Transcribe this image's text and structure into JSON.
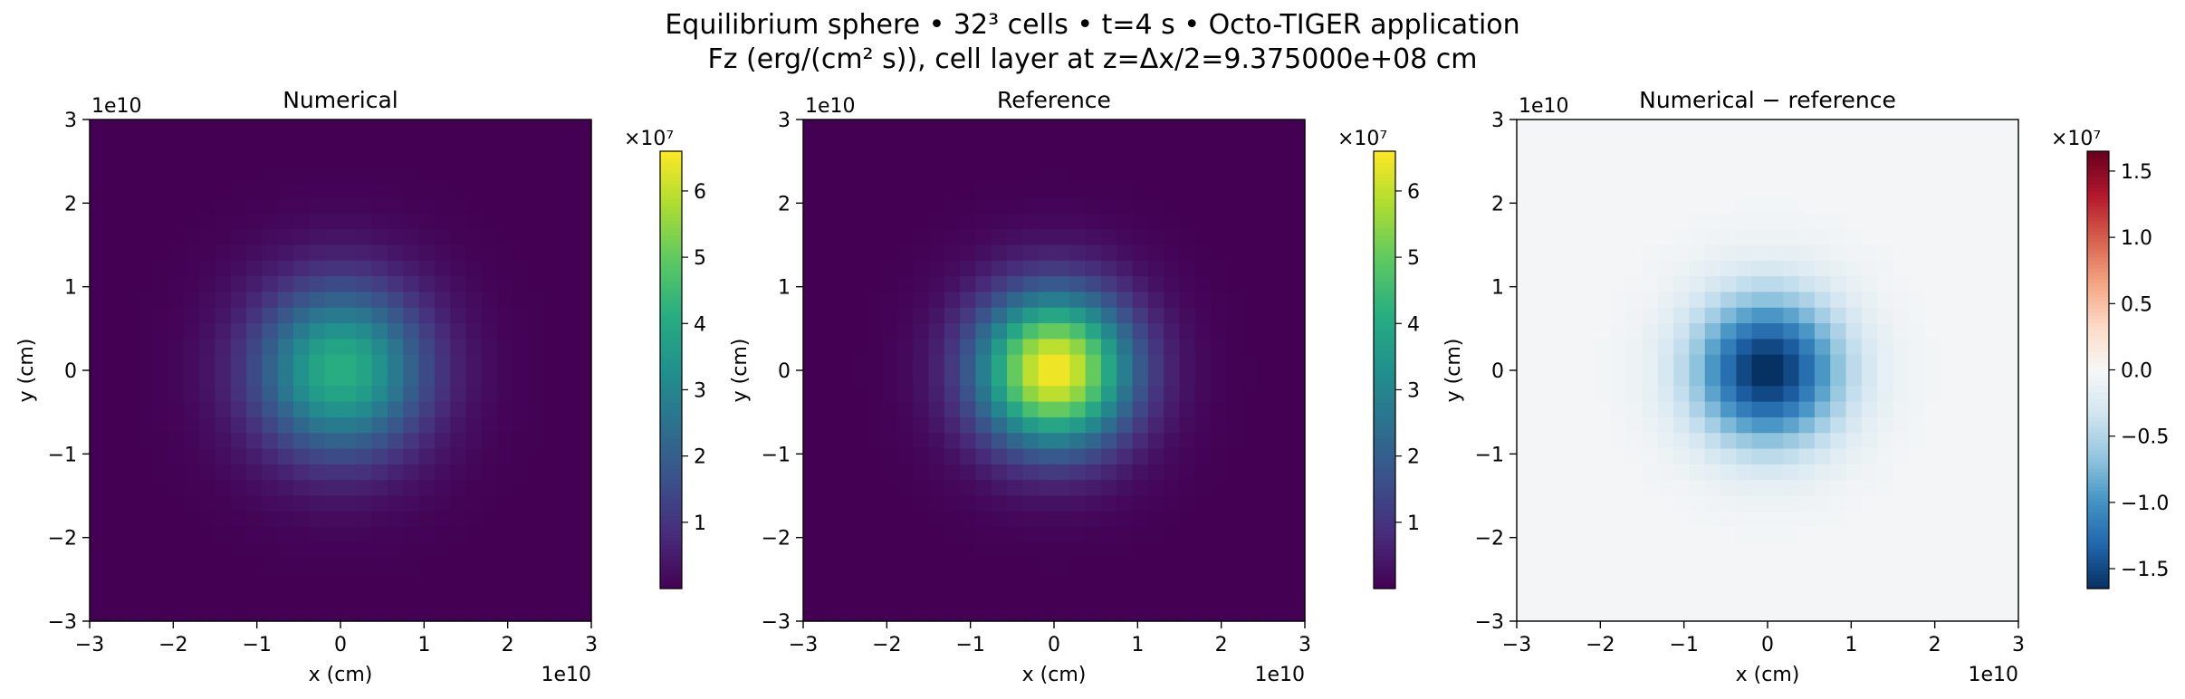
{
  "suptitle": {
    "line1": "Equilibrium sphere • 32³ cells • t=4 s • Octo-TIGER application",
    "line2": "Fz (erg/(cm² s)), cell layer at z=Δx/2=9.375000e+08 cm"
  },
  "chart_data": [
    {
      "type": "heatmap",
      "title": "Numerical",
      "xlabel": "x (cm)",
      "ylabel": "y (cm)",
      "xlim": [
        -3,
        3
      ],
      "ylim": [
        -3,
        3
      ],
      "axis_multiplier": "1e10",
      "xticks": [
        "−3",
        "−2",
        "−1",
        "0",
        "1",
        "2",
        "3"
      ],
      "yticks": [
        "−3",
        "−2",
        "−1",
        "0",
        "1",
        "2",
        "3"
      ],
      "grid_cells": 32,
      "colormap": "viridis",
      "peak_value": 4.2,
      "gaussian_width": 0.72,
      "colorbar": {
        "range": [
          0,
          6.6
        ],
        "multiplier": "×10⁷",
        "ticks": [
          1,
          2,
          3,
          4,
          5,
          6
        ],
        "tick_labels": [
          "1",
          "2",
          "3",
          "4",
          "5",
          "6"
        ]
      }
    },
    {
      "type": "heatmap",
      "title": "Reference",
      "xlabel": "x (cm)",
      "ylabel": "y (cm)",
      "xlim": [
        -3,
        3
      ],
      "ylim": [
        -3,
        3
      ],
      "axis_multiplier": "1e10",
      "xticks": [
        "−3",
        "−2",
        "−1",
        "0",
        "1",
        "2",
        "3"
      ],
      "yticks": [
        "−3",
        "−2",
        "−1",
        "0",
        "1",
        "2",
        "3"
      ],
      "grid_cells": 32,
      "colormap": "viridis",
      "peak_value": 6.6,
      "gaussian_width": 0.65,
      "colorbar": {
        "range": [
          0,
          6.6
        ],
        "multiplier": "×10⁷",
        "ticks": [
          1,
          2,
          3,
          4,
          5,
          6
        ],
        "tick_labels": [
          "1",
          "2",
          "3",
          "4",
          "5",
          "6"
        ]
      }
    },
    {
      "type": "heatmap",
      "title": "Numerical − reference",
      "xlabel": "x (cm)",
      "ylabel": "y (cm)",
      "xlim": [
        -3,
        3
      ],
      "ylim": [
        -3,
        3
      ],
      "axis_multiplier": "1e10",
      "xticks": [
        "−3",
        "−2",
        "−1",
        "0",
        "1",
        "2",
        "3"
      ],
      "yticks": [
        "−3",
        "−2",
        "−1",
        "0",
        "1",
        "2",
        "3"
      ],
      "grid_cells": 32,
      "colormap": "RdBu_r",
      "peak_value": -1.65,
      "gaussian_width": 0.62,
      "background_value": -0.03,
      "colorbar": {
        "range": [
          -1.65,
          1.65
        ],
        "multiplier": "×10⁷",
        "ticks": [
          -1.5,
          -1.0,
          -0.5,
          0.0,
          0.5,
          1.0,
          1.5
        ],
        "tick_labels": [
          "−1.5",
          "−1.0",
          "−0.5",
          "0.0",
          "0.5",
          "1.0",
          "1.5"
        ]
      }
    }
  ]
}
